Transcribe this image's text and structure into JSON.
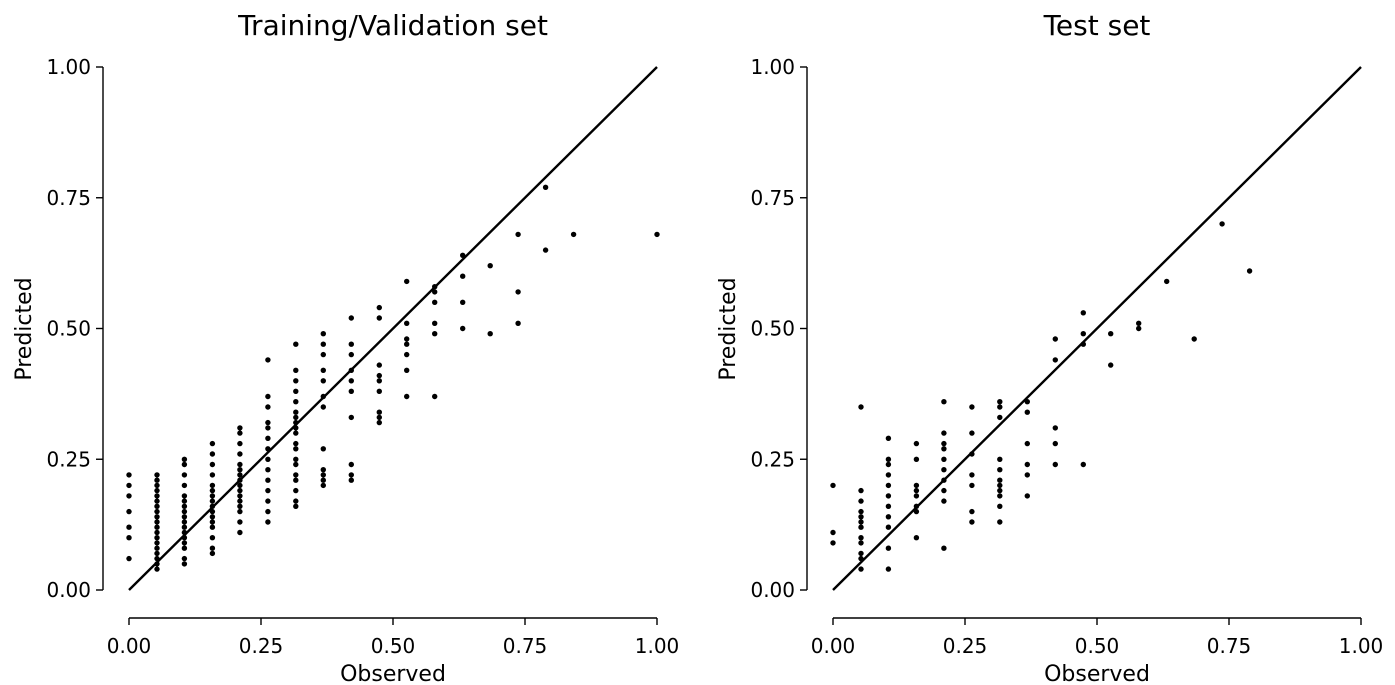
{
  "chart_data": [
    {
      "type": "scatter",
      "title": "Training/Validation set",
      "xlabel": "Observed",
      "ylabel": "Predicted",
      "xlim": [
        0,
        1
      ],
      "ylim": [
        0,
        1
      ],
      "xticks": [
        "0.00",
        "0.25",
        "0.50",
        "0.75",
        "1.00"
      ],
      "yticks": [
        "0.00",
        "0.25",
        "0.50",
        "0.75",
        "1.00"
      ],
      "reference_line": "y = x",
      "grid": false,
      "points": [
        [
          0,
          0.06
        ],
        [
          0,
          0.1
        ],
        [
          0,
          0.12
        ],
        [
          0,
          0.15
        ],
        [
          0,
          0.18
        ],
        [
          0,
          0.2
        ],
        [
          0,
          0.22
        ],
        [
          0.053,
          0.04
        ],
        [
          0.053,
          0.05
        ],
        [
          0.053,
          0.06
        ],
        [
          0.053,
          0.07
        ],
        [
          0.053,
          0.08
        ],
        [
          0.053,
          0.09
        ],
        [
          0.053,
          0.1
        ],
        [
          0.053,
          0.11
        ],
        [
          0.053,
          0.12
        ],
        [
          0.053,
          0.13
        ],
        [
          0.053,
          0.14
        ],
        [
          0.053,
          0.15
        ],
        [
          0.053,
          0.16
        ],
        [
          0.053,
          0.17
        ],
        [
          0.053,
          0.18
        ],
        [
          0.053,
          0.19
        ],
        [
          0.053,
          0.2
        ],
        [
          0.053,
          0.21
        ],
        [
          0.053,
          0.22
        ],
        [
          0.105,
          0.05
        ],
        [
          0.105,
          0.06
        ],
        [
          0.105,
          0.08
        ],
        [
          0.105,
          0.09
        ],
        [
          0.105,
          0.1
        ],
        [
          0.105,
          0.11
        ],
        [
          0.105,
          0.12
        ],
        [
          0.105,
          0.13
        ],
        [
          0.105,
          0.14
        ],
        [
          0.105,
          0.15
        ],
        [
          0.105,
          0.16
        ],
        [
          0.105,
          0.17
        ],
        [
          0.105,
          0.18
        ],
        [
          0.105,
          0.2
        ],
        [
          0.105,
          0.22
        ],
        [
          0.105,
          0.24
        ],
        [
          0.105,
          0.25
        ],
        [
          0.158,
          0.07
        ],
        [
          0.158,
          0.08
        ],
        [
          0.158,
          0.1
        ],
        [
          0.158,
          0.12
        ],
        [
          0.158,
          0.13
        ],
        [
          0.158,
          0.14
        ],
        [
          0.158,
          0.15
        ],
        [
          0.158,
          0.16
        ],
        [
          0.158,
          0.17
        ],
        [
          0.158,
          0.18
        ],
        [
          0.158,
          0.19
        ],
        [
          0.158,
          0.2
        ],
        [
          0.158,
          0.22
        ],
        [
          0.158,
          0.24
        ],
        [
          0.158,
          0.26
        ],
        [
          0.158,
          0.28
        ],
        [
          0.21,
          0.11
        ],
        [
          0.21,
          0.13
        ],
        [
          0.21,
          0.15
        ],
        [
          0.21,
          0.16
        ],
        [
          0.21,
          0.17
        ],
        [
          0.21,
          0.18
        ],
        [
          0.21,
          0.19
        ],
        [
          0.21,
          0.2
        ],
        [
          0.21,
          0.21
        ],
        [
          0.21,
          0.22
        ],
        [
          0.21,
          0.23
        ],
        [
          0.21,
          0.24
        ],
        [
          0.21,
          0.26
        ],
        [
          0.21,
          0.28
        ],
        [
          0.21,
          0.3
        ],
        [
          0.21,
          0.31
        ],
        [
          0.263,
          0.13
        ],
        [
          0.263,
          0.15
        ],
        [
          0.263,
          0.17
        ],
        [
          0.263,
          0.19
        ],
        [
          0.263,
          0.21
        ],
        [
          0.263,
          0.23
        ],
        [
          0.263,
          0.25
        ],
        [
          0.263,
          0.27
        ],
        [
          0.263,
          0.29
        ],
        [
          0.263,
          0.31
        ],
        [
          0.263,
          0.32
        ],
        [
          0.263,
          0.35
        ],
        [
          0.263,
          0.37
        ],
        [
          0.263,
          0.44
        ],
        [
          0.316,
          0.16
        ],
        [
          0.316,
          0.17
        ],
        [
          0.316,
          0.19
        ],
        [
          0.316,
          0.21
        ],
        [
          0.316,
          0.22
        ],
        [
          0.316,
          0.24
        ],
        [
          0.316,
          0.25
        ],
        [
          0.316,
          0.27
        ],
        [
          0.316,
          0.28
        ],
        [
          0.316,
          0.3
        ],
        [
          0.316,
          0.31
        ],
        [
          0.316,
          0.32
        ],
        [
          0.316,
          0.33
        ],
        [
          0.316,
          0.34
        ],
        [
          0.316,
          0.36
        ],
        [
          0.316,
          0.38
        ],
        [
          0.316,
          0.4
        ],
        [
          0.316,
          0.42
        ],
        [
          0.316,
          0.47
        ],
        [
          0.368,
          0.2
        ],
        [
          0.368,
          0.21
        ],
        [
          0.368,
          0.22
        ],
        [
          0.368,
          0.23
        ],
        [
          0.368,
          0.27
        ],
        [
          0.368,
          0.35
        ],
        [
          0.368,
          0.37
        ],
        [
          0.368,
          0.4
        ],
        [
          0.368,
          0.42
        ],
        [
          0.368,
          0.45
        ],
        [
          0.368,
          0.47
        ],
        [
          0.368,
          0.49
        ],
        [
          0.421,
          0.21
        ],
        [
          0.421,
          0.22
        ],
        [
          0.421,
          0.24
        ],
        [
          0.421,
          0.33
        ],
        [
          0.421,
          0.38
        ],
        [
          0.421,
          0.4
        ],
        [
          0.421,
          0.42
        ],
        [
          0.421,
          0.45
        ],
        [
          0.421,
          0.47
        ],
        [
          0.421,
          0.52
        ],
        [
          0.474,
          0.32
        ],
        [
          0.474,
          0.33
        ],
        [
          0.474,
          0.34
        ],
        [
          0.474,
          0.38
        ],
        [
          0.474,
          0.4
        ],
        [
          0.474,
          0.41
        ],
        [
          0.474,
          0.43
        ],
        [
          0.474,
          0.52
        ],
        [
          0.474,
          0.54
        ],
        [
          0.526,
          0.37
        ],
        [
          0.526,
          0.42
        ],
        [
          0.526,
          0.45
        ],
        [
          0.526,
          0.47
        ],
        [
          0.526,
          0.48
        ],
        [
          0.526,
          0.51
        ],
        [
          0.526,
          0.59
        ],
        [
          0.579,
          0.37
        ],
        [
          0.579,
          0.49
        ],
        [
          0.579,
          0.51
        ],
        [
          0.579,
          0.55
        ],
        [
          0.579,
          0.57
        ],
        [
          0.579,
          0.58
        ],
        [
          0.632,
          0.5
        ],
        [
          0.632,
          0.55
        ],
        [
          0.632,
          0.6
        ],
        [
          0.632,
          0.64
        ],
        [
          0.684,
          0.49
        ],
        [
          0.684,
          0.62
        ],
        [
          0.737,
          0.51
        ],
        [
          0.737,
          0.57
        ],
        [
          0.737,
          0.68
        ],
        [
          0.789,
          0.65
        ],
        [
          0.789,
          0.77
        ],
        [
          0.842,
          0.68
        ],
        [
          1.0,
          0.68
        ]
      ]
    },
    {
      "type": "scatter",
      "title": "Test set",
      "xlabel": "Observed",
      "ylabel": "Predicted",
      "xlim": [
        0,
        1
      ],
      "ylim": [
        0,
        1
      ],
      "xticks": [
        "0.00",
        "0.25",
        "0.50",
        "0.75",
        "1.00"
      ],
      "yticks": [
        "0.00",
        "0.25",
        "0.50",
        "0.75",
        "1.00"
      ],
      "reference_line": "y = x",
      "grid": false,
      "points": [
        [
          0,
          0.09
        ],
        [
          0,
          0.11
        ],
        [
          0,
          0.2
        ],
        [
          0.053,
          0.04
        ],
        [
          0.053,
          0.06
        ],
        [
          0.053,
          0.07
        ],
        [
          0.053,
          0.09
        ],
        [
          0.053,
          0.1
        ],
        [
          0.053,
          0.12
        ],
        [
          0.053,
          0.13
        ],
        [
          0.053,
          0.14
        ],
        [
          0.053,
          0.15
        ],
        [
          0.053,
          0.17
        ],
        [
          0.053,
          0.19
        ],
        [
          0.053,
          0.35
        ],
        [
          0.105,
          0.04
        ],
        [
          0.105,
          0.08
        ],
        [
          0.105,
          0.12
        ],
        [
          0.105,
          0.14
        ],
        [
          0.105,
          0.16
        ],
        [
          0.105,
          0.18
        ],
        [
          0.105,
          0.2
        ],
        [
          0.105,
          0.22
        ],
        [
          0.105,
          0.24
        ],
        [
          0.105,
          0.25
        ],
        [
          0.105,
          0.29
        ],
        [
          0.158,
          0.1
        ],
        [
          0.158,
          0.15
        ],
        [
          0.158,
          0.16
        ],
        [
          0.158,
          0.18
        ],
        [
          0.158,
          0.19
        ],
        [
          0.158,
          0.2
        ],
        [
          0.158,
          0.25
        ],
        [
          0.158,
          0.28
        ],
        [
          0.21,
          0.08
        ],
        [
          0.21,
          0.17
        ],
        [
          0.21,
          0.19
        ],
        [
          0.21,
          0.21
        ],
        [
          0.21,
          0.23
        ],
        [
          0.21,
          0.25
        ],
        [
          0.21,
          0.27
        ],
        [
          0.21,
          0.28
        ],
        [
          0.21,
          0.3
        ],
        [
          0.21,
          0.36
        ],
        [
          0.263,
          0.13
        ],
        [
          0.263,
          0.15
        ],
        [
          0.263,
          0.2
        ],
        [
          0.263,
          0.22
        ],
        [
          0.263,
          0.26
        ],
        [
          0.263,
          0.3
        ],
        [
          0.263,
          0.35
        ],
        [
          0.316,
          0.13
        ],
        [
          0.316,
          0.16
        ],
        [
          0.316,
          0.18
        ],
        [
          0.316,
          0.19
        ],
        [
          0.316,
          0.2
        ],
        [
          0.316,
          0.21
        ],
        [
          0.316,
          0.23
        ],
        [
          0.316,
          0.25
        ],
        [
          0.316,
          0.33
        ],
        [
          0.316,
          0.35
        ],
        [
          0.316,
          0.36
        ],
        [
          0.368,
          0.18
        ],
        [
          0.368,
          0.22
        ],
        [
          0.368,
          0.24
        ],
        [
          0.368,
          0.28
        ],
        [
          0.368,
          0.34
        ],
        [
          0.368,
          0.36
        ],
        [
          0.421,
          0.24
        ],
        [
          0.421,
          0.28
        ],
        [
          0.421,
          0.31
        ],
        [
          0.421,
          0.44
        ],
        [
          0.421,
          0.48
        ],
        [
          0.474,
          0.24
        ],
        [
          0.474,
          0.47
        ],
        [
          0.474,
          0.49
        ],
        [
          0.474,
          0.53
        ],
        [
          0.526,
          0.43
        ],
        [
          0.526,
          0.49
        ],
        [
          0.579,
          0.5
        ],
        [
          0.579,
          0.51
        ],
        [
          0.632,
          0.59
        ],
        [
          0.684,
          0.48
        ],
        [
          0.737,
          0.7
        ],
        [
          0.789,
          0.61
        ]
      ]
    }
  ]
}
